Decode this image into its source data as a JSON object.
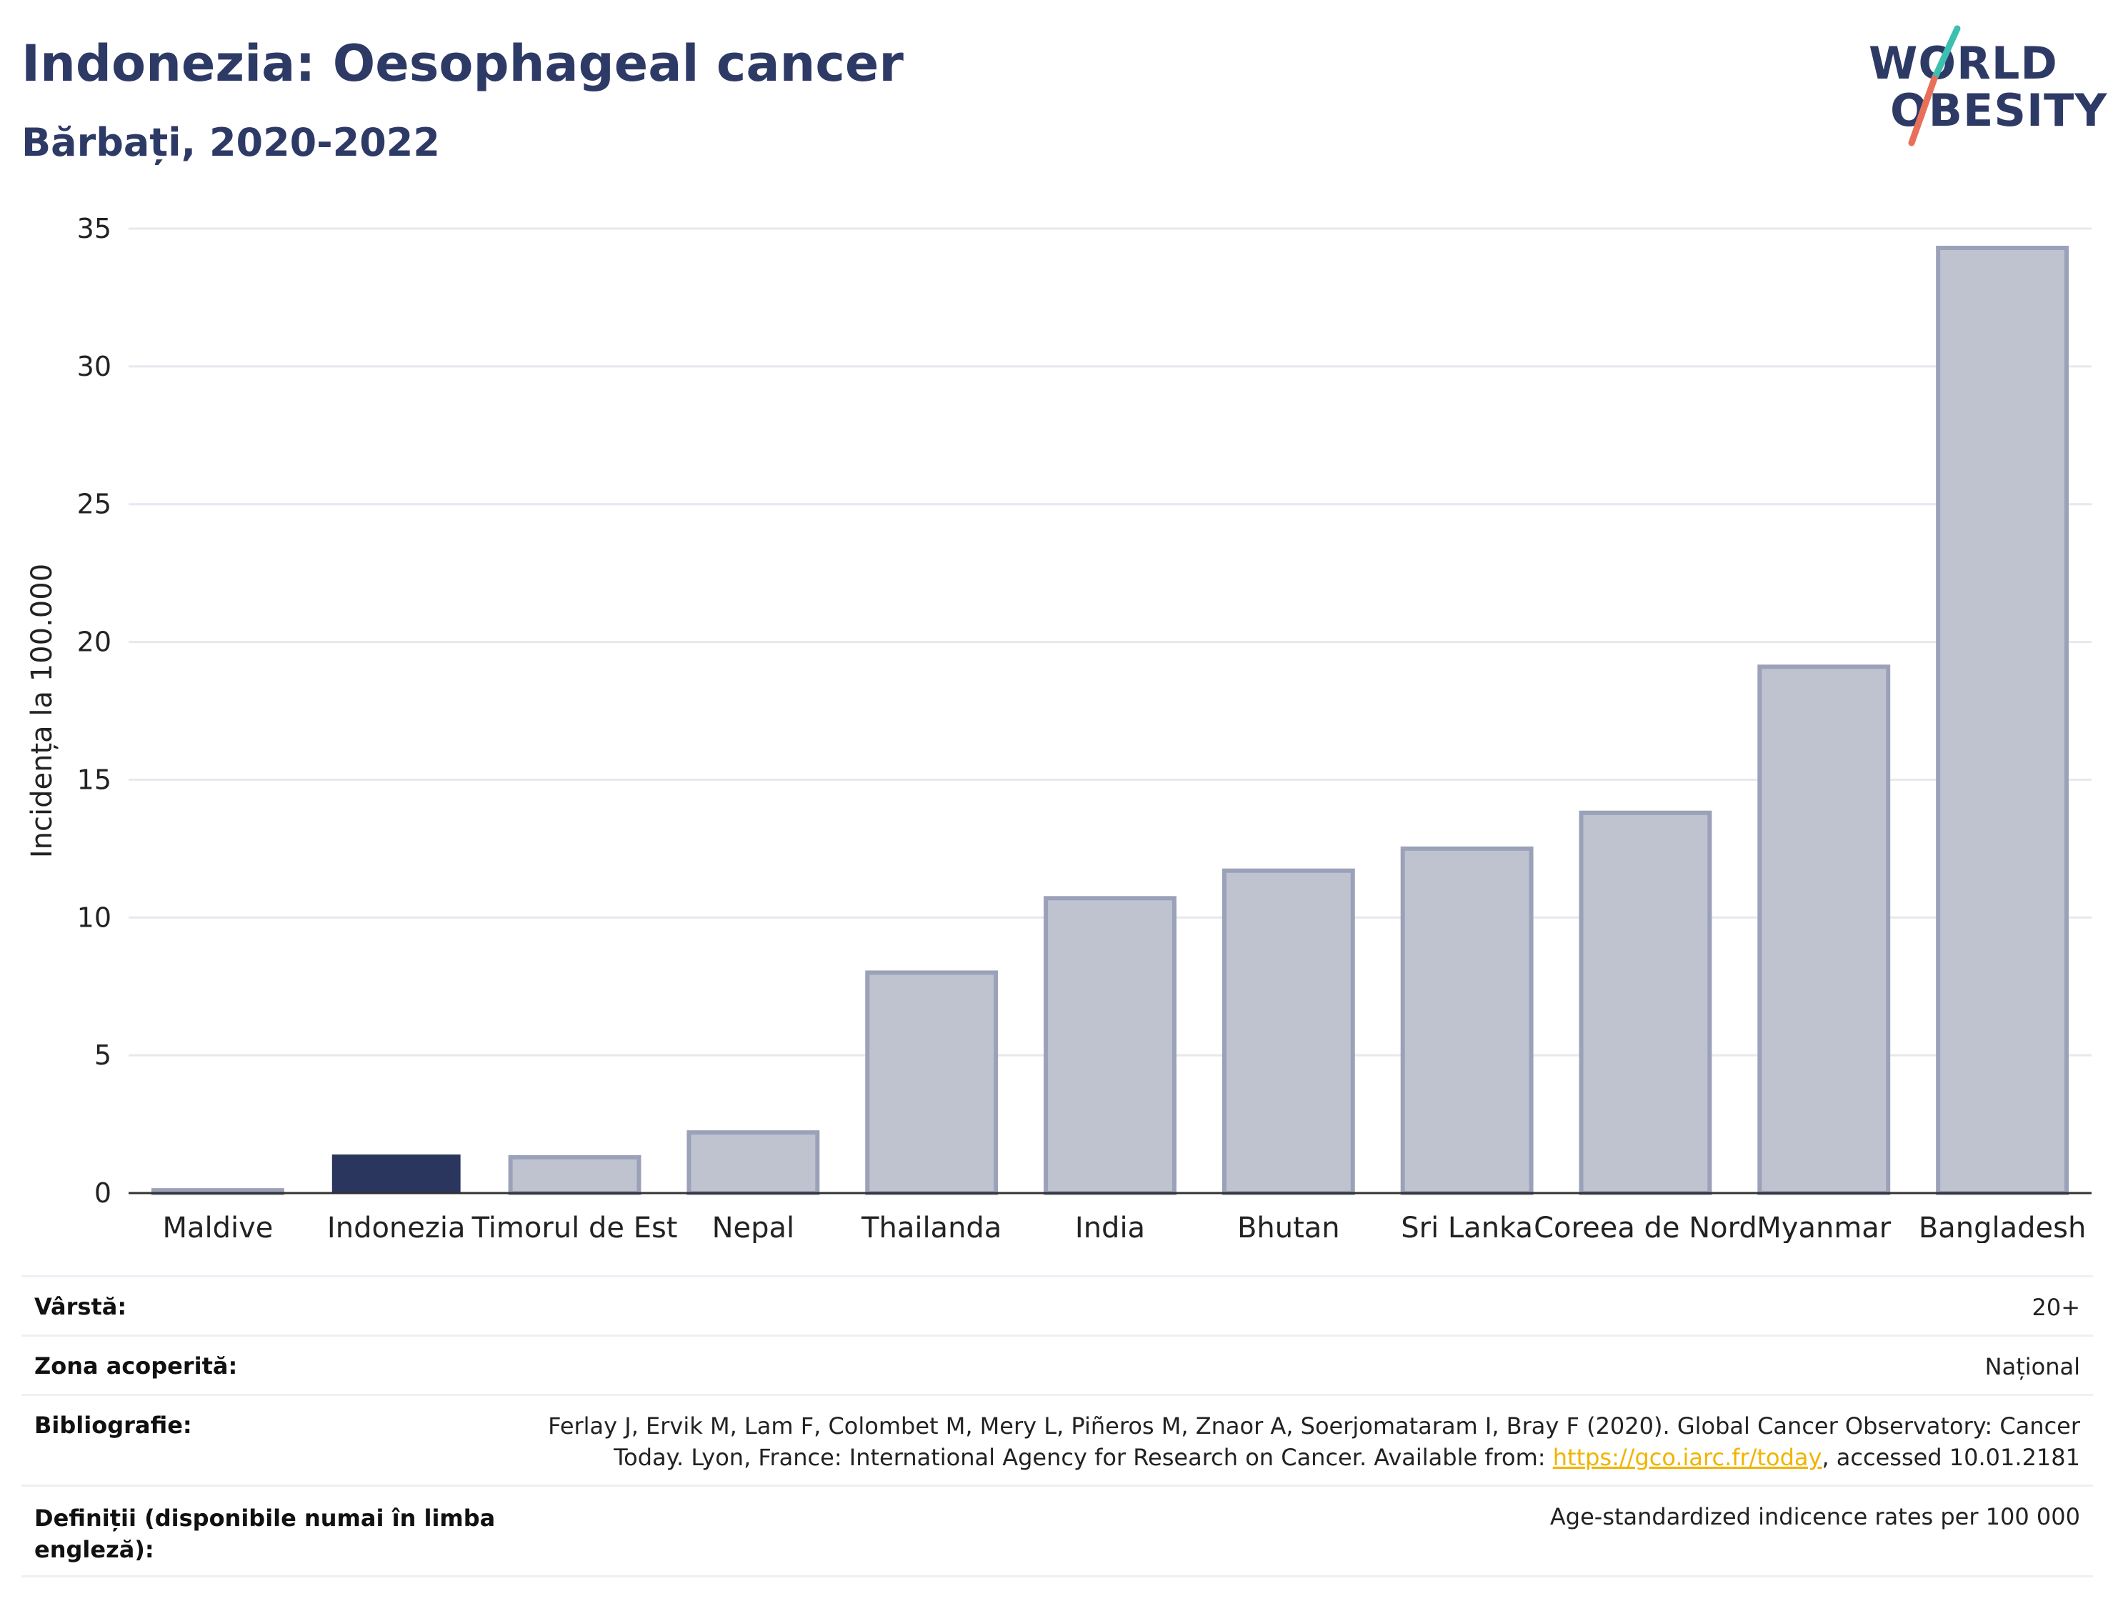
{
  "header": {
    "title": "Indonezia: Oesophageal cancer",
    "subtitle": "Bărbați, 2020-2022"
  },
  "logo": {
    "line1": "WORLD",
    "line2": "OBESITY",
    "colors": {
      "text": "#2e3a66",
      "slash_top": "#3dbfb0",
      "slash_bottom": "#e8705a"
    }
  },
  "colors": {
    "highlight_bar": "#2b365f",
    "other_bar_fill": "#bfc3d0",
    "other_bar_stroke": "#9aa1b8",
    "grid": "#e6e8ee",
    "axis": "#333333"
  },
  "chart_data": {
    "type": "bar",
    "title": "Indonezia: Oesophageal cancer",
    "subtitle": "Bărbați, 2020-2022",
    "ylabel": "Incidența la 100.000",
    "xlabel": "",
    "ylim": [
      0,
      35
    ],
    "yticks": [
      0,
      5,
      10,
      15,
      20,
      25,
      30,
      35
    ],
    "grid": true,
    "categories": [
      "Maldive",
      "Indonezia",
      "Timorul de Est",
      "Nepal",
      "Thailanda",
      "India",
      "Bhutan",
      "Sri Lanka",
      "Coreea de Nord",
      "Myanmar",
      "Bangladesh"
    ],
    "values": [
      0.1,
      1.4,
      1.3,
      2.2,
      8.0,
      10.7,
      11.7,
      12.5,
      13.8,
      19.1,
      34.3
    ],
    "highlight": "Indonezia"
  },
  "footer": {
    "age_label": "Vârstă:",
    "age_value": "20+",
    "area_label": "Zona acoperită:",
    "area_value": "Național",
    "bib_label": "Bibliografie:",
    "bib_line1": "Ferlay J, Ervik M, Lam F, Colombet M, Mery L, Piñeros M, Znaor A, Soerjomataram I, Bray F (2020). Global Cancer Observatory: Cancer",
    "bib_line2_pre": "Today. Lyon, France: International Agency for Research on Cancer. Available from: ",
    "bib_link": "https://gco.iarc.fr/today",
    "bib_line2_post": ", accessed 10.01.2181",
    "def_label_line1": "Definiții (disponibile numai în limba",
    "def_label_line2": "engleză):",
    "def_value": "Age-standardized indicence rates per 100 000"
  }
}
